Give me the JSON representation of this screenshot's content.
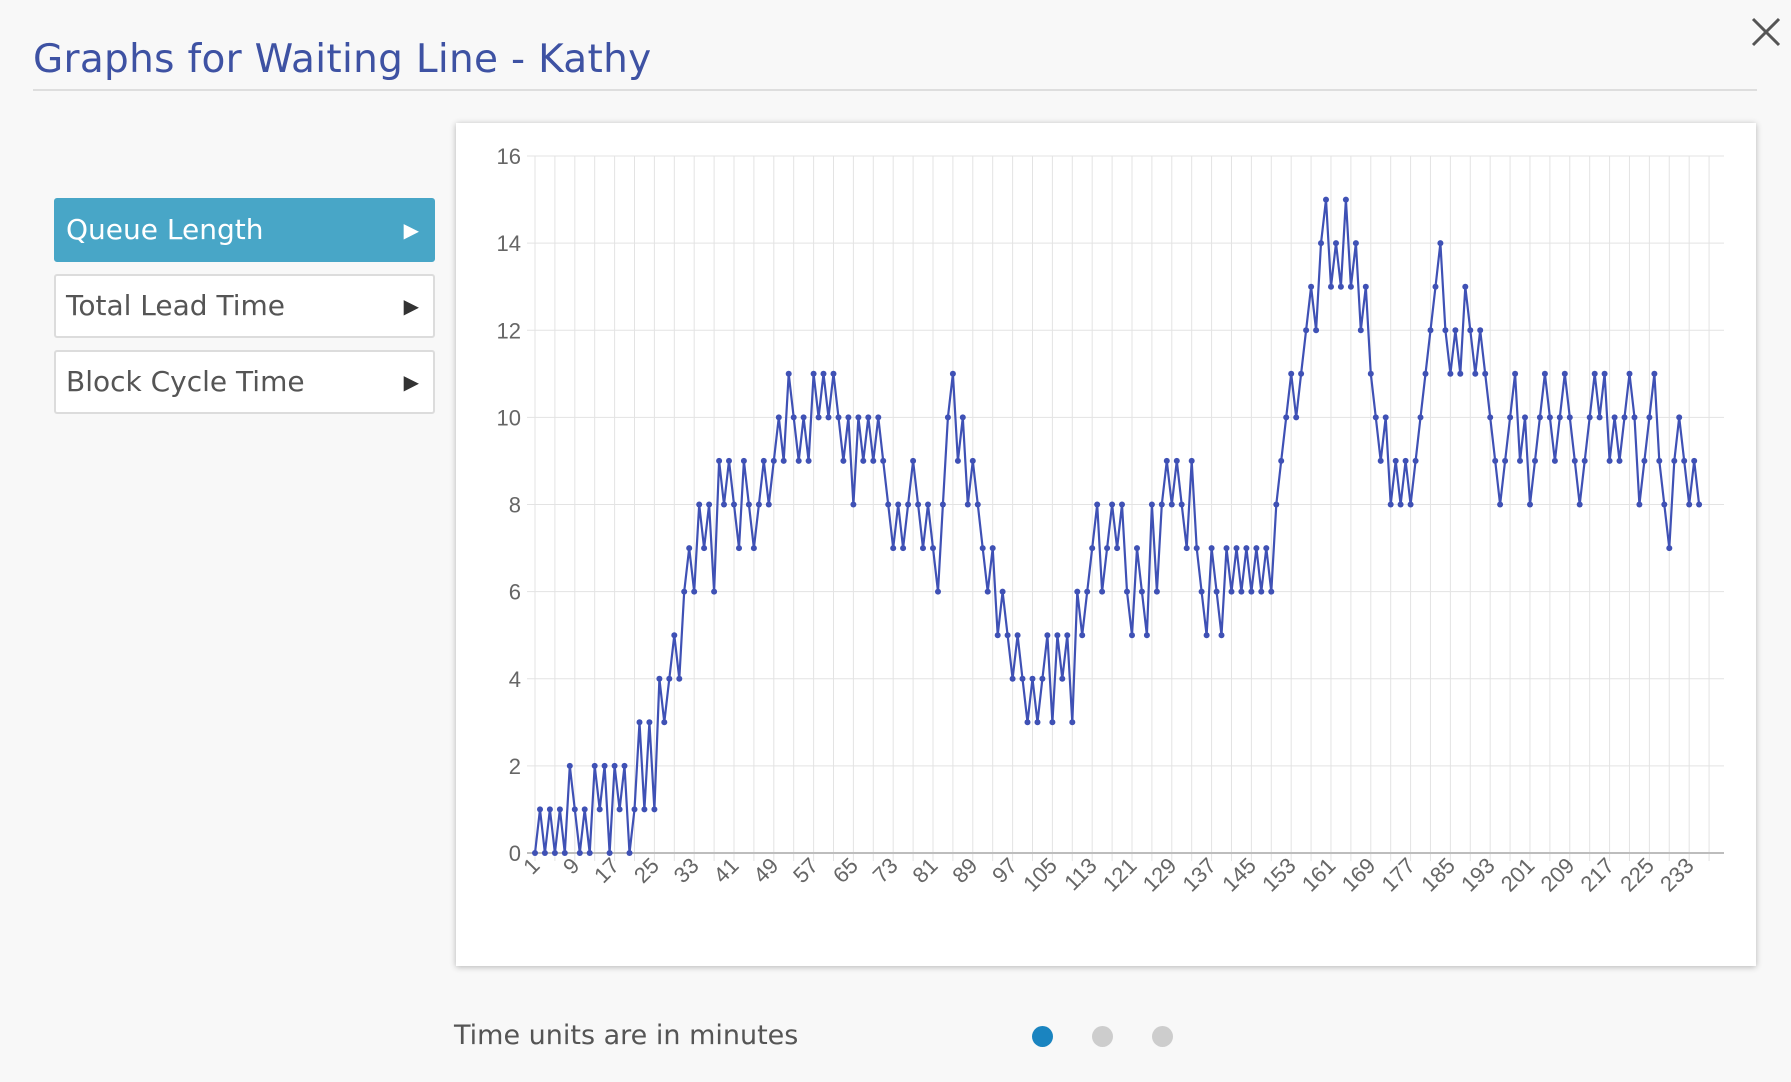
{
  "modal": {
    "title": "Graphs for Waiting Line - Kathy",
    "close_icon": "close-icon"
  },
  "nav": {
    "items": [
      {
        "label": "Queue Length",
        "active": true,
        "icon": "play-arrow-icon"
      },
      {
        "label": "Total Lead Time",
        "active": false,
        "icon": "play-arrow-icon"
      },
      {
        "label": "Block Cycle Time",
        "active": false,
        "icon": "play-arrow-icon"
      }
    ],
    "arrow_glyph": "▶"
  },
  "footer": {
    "note": "Time units are in minutes"
  },
  "pager": {
    "count": 3,
    "active_index": 0
  },
  "colors": {
    "title": "#3e52a3",
    "accent": "#48a6c7",
    "series": "#3f51b5",
    "pager_active": "#1a84c0",
    "pager_inactive": "#cdcdcd"
  },
  "chart_data": {
    "type": "line",
    "title": "",
    "xlabel": "",
    "ylabel": "",
    "ylim": [
      0,
      16
    ],
    "yticks": [
      0,
      2,
      4,
      6,
      8,
      10,
      12,
      14,
      16
    ],
    "xlim": [
      1,
      240
    ],
    "xtick_labels": [
      "1",
      "9",
      "17",
      "25",
      "33",
      "41",
      "49",
      "57",
      "65",
      "73",
      "81",
      "89",
      "97",
      "105",
      "113",
      "121",
      "129",
      "137",
      "145",
      "153",
      "161",
      "169",
      "177",
      "185",
      "193",
      "201",
      "209",
      "217",
      "225",
      "233"
    ],
    "grid": true,
    "legend": "none",
    "series": [
      {
        "values": [
          0,
          1,
          0,
          1,
          0,
          1,
          0,
          2,
          1,
          0,
          1,
          0,
          2,
          1,
          2,
          0,
          2,
          1,
          2,
          0,
          1,
          3,
          1,
          3,
          1,
          4,
          3,
          4,
          5,
          4,
          6,
          7,
          6,
          8,
          7,
          8,
          6,
          9,
          8,
          9,
          8,
          7,
          9,
          8,
          7,
          8,
          9,
          8,
          9,
          10,
          9,
          11,
          10,
          9,
          10,
          9,
          11,
          10,
          11,
          10,
          11,
          10,
          9,
          10,
          8,
          10,
          9,
          10,
          9,
          10,
          9,
          8,
          7,
          8,
          7,
          8,
          9,
          8,
          7,
          8,
          7,
          6,
          8,
          10,
          11,
          9,
          10,
          8,
          9,
          8,
          7,
          6,
          7,
          5,
          6,
          5,
          4,
          5,
          4,
          3,
          4,
          3,
          4,
          5,
          3,
          5,
          4,
          5,
          3,
          6,
          5,
          6,
          7,
          8,
          6,
          7,
          8,
          7,
          8,
          6,
          5,
          7,
          6,
          5,
          8,
          6,
          8,
          9,
          8,
          9,
          8,
          7,
          9,
          7,
          6,
          5,
          7,
          6,
          5,
          7,
          6,
          7,
          6,
          7,
          6,
          7,
          6,
          7,
          6,
          8,
          9,
          10,
          11,
          10,
          11,
          12,
          13,
          12,
          14,
          15,
          13,
          14,
          13,
          15,
          13,
          14,
          12,
          13,
          11,
          10,
          9,
          10,
          8,
          9,
          8,
          9,
          8,
          9,
          10,
          11,
          12,
          13,
          14,
          12,
          11,
          12,
          11,
          13,
          12,
          11,
          12,
          11,
          10,
          9,
          8,
          9,
          10,
          11,
          9,
          10,
          8,
          9,
          10,
          11,
          10,
          9,
          10,
          11,
          10,
          9,
          8,
          9,
          10,
          11,
          10,
          11,
          9,
          10,
          9,
          10,
          11,
          10,
          8,
          9,
          10,
          11,
          9,
          8,
          7,
          9,
          10,
          9,
          8,
          9,
          8
        ]
      }
    ]
  }
}
